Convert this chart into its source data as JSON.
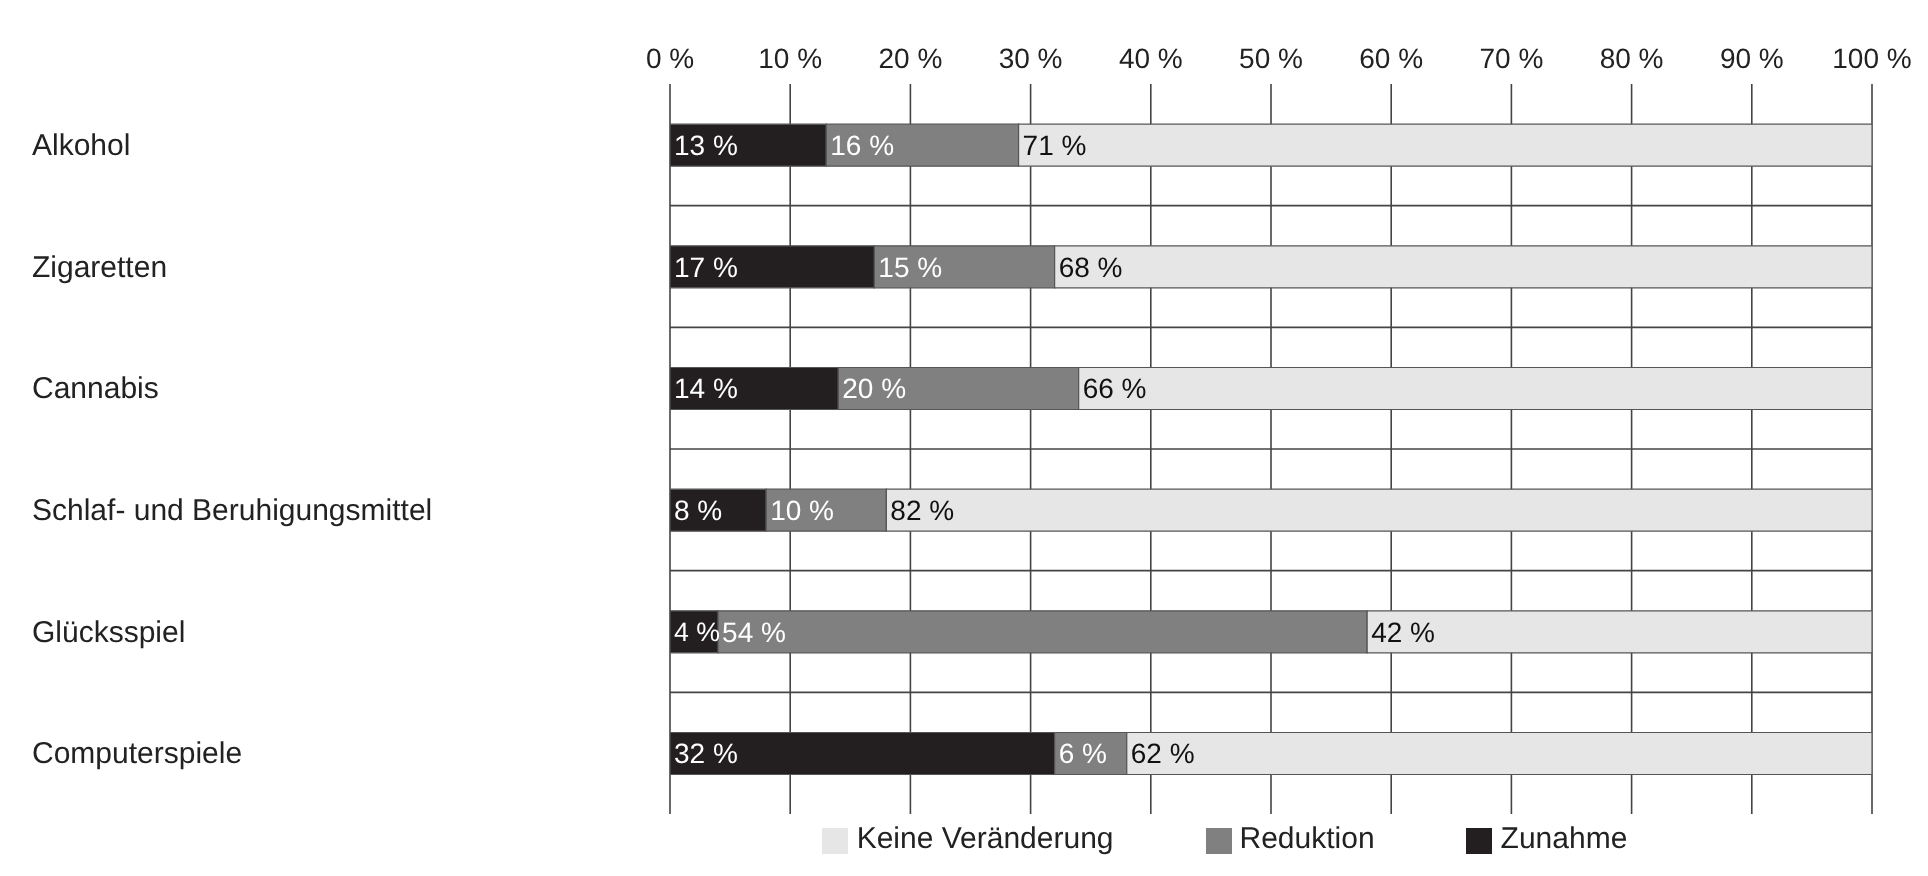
{
  "chart_data": {
    "type": "bar",
    "orientation": "horizontal",
    "stacked": true,
    "categories": [
      "Alkohol",
      "Zigaretten",
      "Cannabis",
      "Schlaf- und Beruhigungsmittel",
      "Glücksspiel",
      "Computerspiele"
    ],
    "series": [
      {
        "name": "Zunahme",
        "color": "#231f20",
        "values": [
          13,
          17,
          14,
          8,
          4,
          32
        ],
        "value_labels": [
          "13 %",
          "17 %",
          "14 %",
          "8 %",
          "4 %",
          "32 %"
        ]
      },
      {
        "name": "Reduktion",
        "color": "#808080",
        "values": [
          16,
          15,
          20,
          10,
          54,
          6
        ],
        "value_labels": [
          "16 %",
          "15 %",
          "20 %",
          "10 %",
          "54 %",
          "6 %"
        ]
      },
      {
        "name": "Keine Veränderung",
        "color": "#e6e6e6",
        "values": [
          71,
          68,
          66,
          82,
          42,
          62
        ],
        "value_labels": [
          "71 %",
          "68 %",
          "66 %",
          "82 %",
          "42 %",
          "62 %"
        ]
      }
    ],
    "xlim": [
      0,
      100
    ],
    "xticks": [
      {
        "value": 0,
        "label": "0 %"
      },
      {
        "value": 10,
        "label": "10 %"
      },
      {
        "value": 20,
        "label": "20 %"
      },
      {
        "value": 30,
        "label": "30 %"
      },
      {
        "value": 40,
        "label": "40 %"
      },
      {
        "value": 50,
        "label": "50 %"
      },
      {
        "value": 60,
        "label": "60 %"
      },
      {
        "value": 70,
        "label": "70 %"
      },
      {
        "value": 80,
        "label": "80 %"
      },
      {
        "value": 90,
        "label": "90 %"
      },
      {
        "value": 100,
        "label": "100 %"
      }
    ],
    "grid": true,
    "legend": "bottom"
  }
}
